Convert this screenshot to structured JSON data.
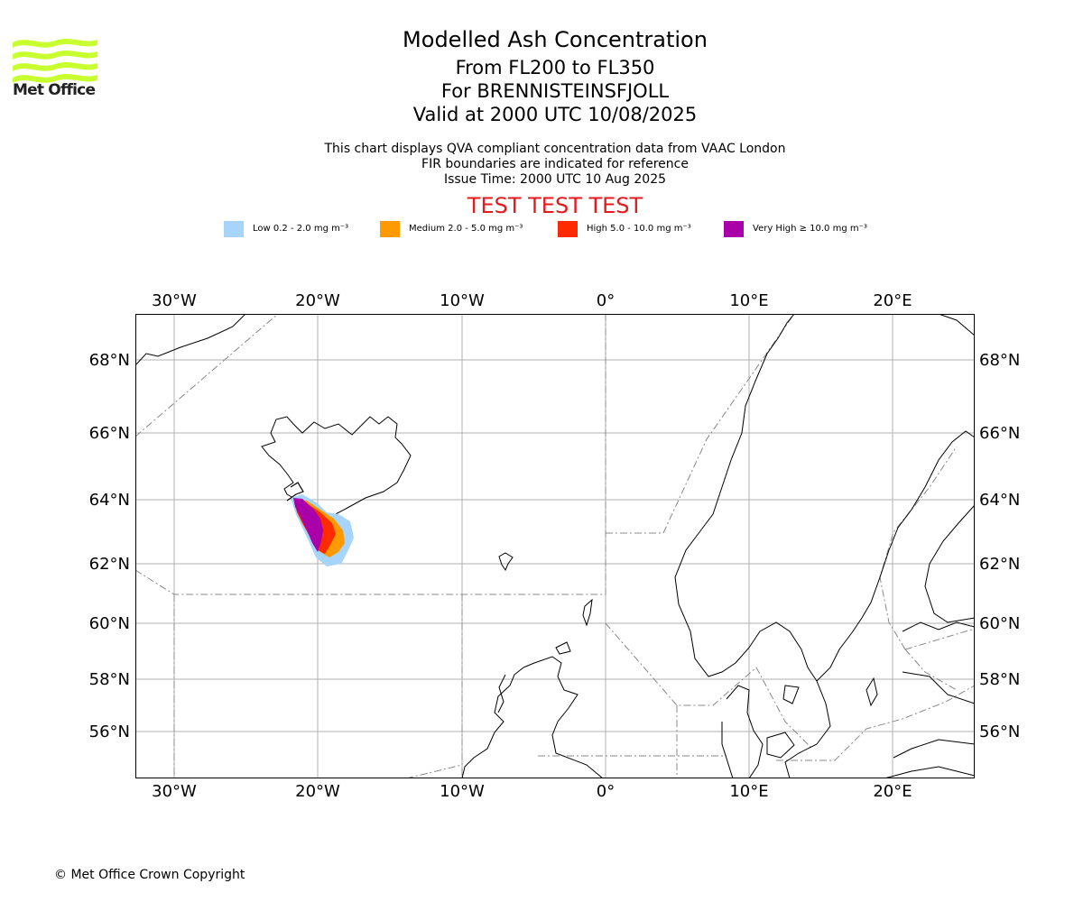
{
  "header": {
    "logo_text": "Met Office",
    "title": "Modelled Ash Concentration",
    "levels": "From FL200 to FL350",
    "volcano": "For BRENNISTEINSFJOLL",
    "valid": "Valid at 2000 UTC 10/08/2025",
    "note1": "This chart displays QVA compliant concentration data from VAAC London",
    "note2": "FIR boundaries are indicated for reference",
    "issue": "Issue Time: 2000 UTC 10 Aug 2025",
    "test_banner": "TEST TEST TEST"
  },
  "legend": [
    {
      "label": "Low 0.2 - 2.0 mg m⁻³",
      "color": "#a6d4fa"
    },
    {
      "label": "Medium 2.0 - 5.0 mg m⁻³",
      "color": "#ff9900"
    },
    {
      "label": "High 5.0 - 10.0 mg m⁻³",
      "color": "#ff2a00"
    },
    {
      "label": "Very High ≥ 10.0 mg m⁻³",
      "color": "#aa00aa"
    }
  ],
  "map": {
    "lon_ticks": [
      "30°W",
      "20°W",
      "10°W",
      "0°",
      "10°E",
      "20°E"
    ],
    "lat_ticks": [
      "68°N",
      "66°N",
      "64°N",
      "62°N",
      "60°N",
      "58°N",
      "56°N"
    ],
    "regions": [
      "Iceland",
      "Faroe Islands",
      "Shetland",
      "Scotland",
      "Norway",
      "Sweden",
      "Denmark"
    ]
  },
  "footer": {
    "copyright": "© Met Office Crown Copyright"
  }
}
